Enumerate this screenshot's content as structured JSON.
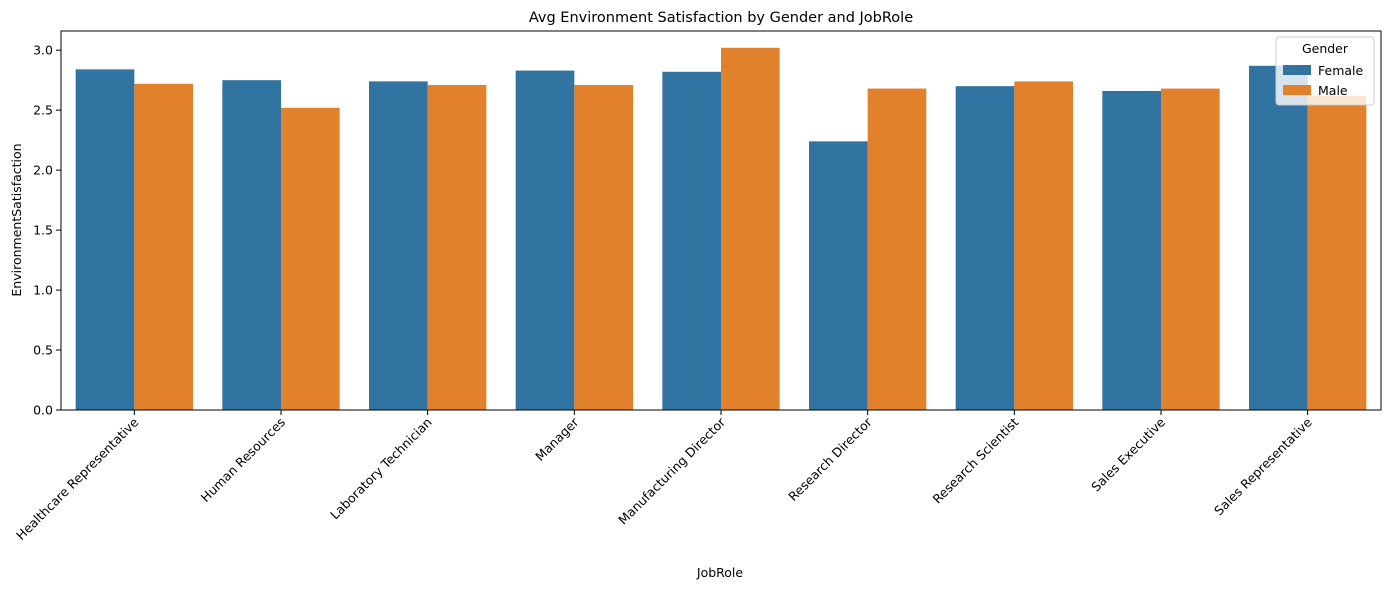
{
  "chart_data": {
    "type": "bar",
    "title": "Avg Environment Satisfaction by Gender and JobRole",
    "xlabel": "JobRole",
    "ylabel": "EnvironmentSatisfaction",
    "categories": [
      "Healthcare Representative",
      "Human Resources",
      "Laboratory Technician",
      "Manager",
      "Manufacturing Director",
      "Research Director",
      "Research Scientist",
      "Sales Executive",
      "Sales Representative"
    ],
    "series": [
      {
        "name": "Female",
        "color": "#3274a1",
        "values": [
          2.84,
          2.75,
          2.74,
          2.83,
          2.82,
          2.24,
          2.7,
          2.66,
          2.87
        ]
      },
      {
        "name": "Male",
        "color": "#e1812c",
        "values": [
          2.72,
          2.52,
          2.71,
          2.71,
          3.02,
          2.68,
          2.74,
          2.68,
          2.62
        ]
      }
    ],
    "ylim": [
      0,
      3.16
    ],
    "yticks": [
      "0.0",
      "0.5",
      "1.0",
      "1.5",
      "2.0",
      "2.5",
      "3.0"
    ],
    "grid": false,
    "legend": {
      "title": "Gender",
      "placement": "top-right"
    }
  }
}
